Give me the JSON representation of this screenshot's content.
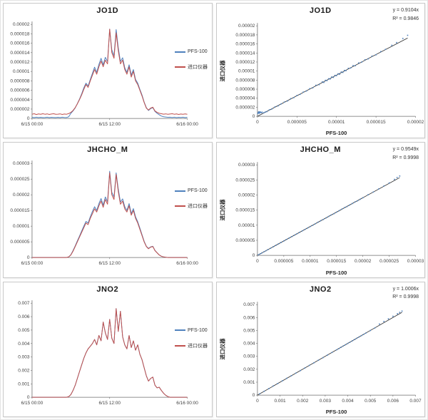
{
  "page": {
    "background": "#ffffff",
    "panel_border": "#c9c9c9"
  },
  "colors": {
    "pfs": "#4f81bd",
    "imported": "#c0504d",
    "trend": "#2b2b2b",
    "axis": "#6e6e6e",
    "tick_text": "#3f3f3f",
    "title_text": "#1a1a1a"
  },
  "chart_data": [
    {
      "id": "jo1d-timeseries",
      "type": "line",
      "title": "JO1D",
      "legend_position": "right",
      "x_axis": {
        "tick_labels": [
          "6/15 00:00",
          "6/15 12:00",
          "6/16 00:00"
        ],
        "start": "6/15 00:00",
        "end": "6/16 00:00",
        "sample_interval_minutes": 20
      },
      "y_axis": {
        "min": 0,
        "max": 2e-05,
        "tick_labels": [
          "0",
          "0.000002",
          "0.000004",
          "0.000006",
          "0.000008",
          "0.00001",
          "0.000012",
          "0.000014",
          "0.000016",
          "0.000018",
          "0.00002"
        ]
      },
      "series": [
        {
          "name": "PFS-100",
          "color_key": "pfs",
          "values": [
            2.4e-07,
            2e-07,
            2.6e-07,
            1.8e-07,
            2.4e-07,
            2e-07,
            2.2e-07,
            2.6e-07,
            2e-07,
            2.4e-07,
            2.2e-07,
            1.8e-07,
            2.4e-07,
            2e-07,
            2.6e-07,
            2.2e-07,
            2e-07,
            3.6e-07,
            1.1e-06,
            1.6e-06,
            2.24e-06,
            3.16e-06,
            4.1e-06,
            5.2e-06,
            6.5e-06,
            7.5e-06,
            6.9e-06,
            8.3e-06,
            9.6e-06,
            1.09e-05,
            9.8e-06,
            1.15e-05,
            1.28e-05,
            1.14e-05,
            1.3e-05,
            1.21e-05,
            1.9e-05,
            1.46e-05,
            1.33e-05,
            1.89e-05,
            1.5e-05,
            1.21e-05,
            1.29e-05,
            1.08e-05,
            9.8e-06,
            1.14e-05,
            9.2e-06,
            1.04e-05,
            8.3e-06,
            7.5e-06,
            6.2e-06,
            5e-06,
            3.5e-06,
            2.3e-06,
            1.7e-06,
            2.1e-06,
            2.3e-06,
            1.5e-06,
            1.1e-06,
            8e-07,
            5e-07,
            3.6e-07,
            3e-07,
            2.4e-07,
            2.8e-07,
            2.2e-07,
            2.6e-07,
            2e-07,
            2.4e-07,
            2.2e-07,
            2.6e-07,
            2e-07,
            2.4e-07
          ]
        },
        {
          "name": "进口仪器",
          "color_key": "imported",
          "values": [
            9e-07,
            1e-06,
            8.4e-07,
            9.6e-07,
            8.8e-07,
            1e-06,
            9e-07,
            9.8e-07,
            8.6e-07,
            9.4e-07,
            1e-06,
            8.8e-07,
            9.2e-07,
            9.8e-07,
            8.6e-07,
            9.4e-07,
            9e-07,
            1.04e-06,
            1.3e-06,
            1.7e-06,
            2.3e-06,
            3.1e-06,
            4e-06,
            5e-06,
            6.2e-06,
            7.2e-06,
            6.6e-06,
            8e-06,
            9.2e-06,
            1.04e-05,
            9.4e-06,
            1.1e-05,
            1.22e-05,
            1.1e-05,
            1.24e-05,
            1.16e-05,
            1.9e-05,
            1.4e-05,
            1.28e-05,
            1.82e-05,
            1.44e-05,
            1.16e-05,
            1.24e-05,
            1.04e-05,
            9.4e-06,
            1.1e-05,
            8.8e-06,
            1e-05,
            8e-06,
            7.2e-06,
            6e-06,
            4.8e-06,
            3.4e-06,
            2.2e-06,
            1.8e-06,
            2.2e-06,
            2.4e-06,
            1.6e-06,
            1.3e-06,
            1.1e-06,
            1e-06,
            9.2e-07,
            9.8e-07,
            8.8e-07,
            9.4e-07,
            1e-06,
            9e-07,
            9.6e-07,
            8.6e-07,
            9.4e-07,
            9e-07,
            9.6e-07,
            8.8e-07
          ]
        }
      ]
    },
    {
      "id": "jo1d-scatter",
      "type": "scatter",
      "title": "JO1D",
      "equation": "y = 0.9104x",
      "r_squared": "R² = 0.9846",
      "trend_slope": 0.9104,
      "x_label": "PFS-100",
      "y_label": "进口仪器",
      "x_axis": {
        "min": 0,
        "max": 2e-05,
        "tick_labels": [
          "0",
          "0.000005",
          "0.00001",
          "0.000015",
          "0.00002"
        ]
      },
      "y_axis": {
        "min": 0,
        "max": 2e-05,
        "tick_labels": [
          "0",
          "0.000002",
          "0.000004",
          "0.000006",
          "0.000008",
          "0.00001",
          "0.000012",
          "0.000014",
          "0.000016",
          "0.000018",
          "0.00002"
        ]
      },
      "points": {
        "x": [
          5e-08,
          1e-07,
          1.2e-07,
          1.8e-07,
          2e-07,
          2.5e-07,
          3e-07,
          3.5e-07,
          4e-07,
          5e-07,
          6e-07,
          8e-07,
          1e-06,
          1.2e-06,
          1.5e-06,
          1.8e-06,
          2.2e-06,
          2.6e-06,
          3e-06,
          3.4e-06,
          3.8e-06,
          4.2e-06,
          4.6e-06,
          5e-06,
          5.4e-06,
          5.8e-06,
          6.2e-06,
          6.6e-06,
          7e-06,
          7.4e-06,
          7.8e-06,
          8.2e-06,
          8.4e-06,
          8.6e-06,
          8.8e-06,
          9e-06,
          9.2e-06,
          9.4e-06,
          9.6e-06,
          9.8e-06,
          1e-05,
          1.02e-05,
          1.04e-05,
          1.06e-05,
          1.08e-05,
          1.1e-05,
          1.12e-05,
          1.15e-05,
          1.18e-05,
          1.21e-05,
          1.24e-05,
          1.28e-05,
          1.32e-05,
          1.36e-05,
          1.4e-05,
          1.45e-05,
          1.5e-05,
          1.56e-05,
          1.62e-05,
          1.7e-05,
          1.76e-05,
          1.84e-05,
          1.9e-05
        ],
        "y": [
          6e-07,
          7.5e-07,
          9e-07,
          8e-07,
          1e-06,
          7e-07,
          9e-07,
          8.5e-07,
          9.5e-07,
          8e-07,
          9e-07,
          7.8e-07,
          9.5e-07,
          1.05e-06,
          1.42e-06,
          1.6e-06,
          2.05e-06,
          2.3e-06,
          2.75e-06,
          3.15e-06,
          3.4e-06,
          3.9e-06,
          4.15e-06,
          4.6e-06,
          4.85e-06,
          5.35e-06,
          5.6e-06,
          6.1e-06,
          6.3e-06,
          6.85e-06,
          7e-06,
          7.6e-06,
          7.5e-06,
          7.95e-06,
          7.9e-06,
          8.3e-06,
          8.25e-06,
          8.7e-06,
          8.6e-06,
          9.05e-06,
          9e-06,
          9.4e-06,
          9.3e-06,
          9.8e-06,
          9.7e-06,
          1.015e-05,
          1.01e-05,
          1.06e-05,
          1.07e-05,
          1.12e-05,
          1.12e-05,
          1.18e-05,
          1.2e-05,
          1.25e-05,
          1.27e-05,
          1.33e-05,
          1.36e-05,
          1.43e-05,
          1.48e-05,
          1.57e-05,
          1.63e-05,
          1.72e-05,
          1.79e-05
        ]
      }
    },
    {
      "id": "jhcho-m-timeseries",
      "type": "line",
      "title": "JHCHO_M",
      "legend_position": "right",
      "x_axis": {
        "tick_labels": [
          "6/15 00:00",
          "6/15 12:00",
          "6/16 00:00"
        ],
        "start": "6/15 00:00",
        "end": "6/16 00:00",
        "sample_interval_minutes": 20
      },
      "y_axis": {
        "min": 0,
        "max": 3e-05,
        "tick_labels": [
          "0",
          "0.000005",
          "0.00001",
          "0.000015",
          "0.00002",
          "0.000025",
          "0.00003"
        ]
      },
      "series": [
        {
          "name": "PFS-100",
          "color_key": "pfs",
          "values": [
            0,
            0,
            0,
            0,
            0,
            0,
            0,
            0,
            0,
            0,
            0,
            0,
            0,
            0,
            0,
            0,
            0,
            2e-07,
            9e-07,
            2.2e-06,
            3.7e-06,
            5.3e-06,
            6.8e-06,
            8.4e-06,
            1e-05,
            1.15e-05,
            1.1e-05,
            1.3e-05,
            1.47e-05,
            1.62e-05,
            1.5e-05,
            1.72e-05,
            1.88e-05,
            1.67e-05,
            1.93e-05,
            1.78e-05,
            2.75e-05,
            2.08e-05,
            1.93e-05,
            2.7e-05,
            2.18e-05,
            1.77e-05,
            1.87e-05,
            1.62e-05,
            1.5e-05,
            1.72e-05,
            1.4e-05,
            1.56e-05,
            1.3e-05,
            1.14e-05,
            9.4e-06,
            7.3e-06,
            5.2e-06,
            3.6e-06,
            2.9e-06,
            3.4e-06,
            3.6e-06,
            2.3e-06,
            1.5e-06,
            8e-07,
            4e-07,
            2e-07,
            1e-07,
            0,
            0,
            0,
            0,
            0,
            0,
            0,
            0,
            0,
            0
          ]
        },
        {
          "name": "进口仪器",
          "color_key": "imported",
          "values": [
            0,
            0,
            0,
            0,
            0,
            0,
            0,
            0,
            0,
            0,
            0,
            0,
            0,
            0,
            0,
            0,
            0,
            2e-07,
            8e-07,
            2e-06,
            3.5e-06,
            5e-06,
            6.5e-06,
            8e-06,
            9.5e-06,
            1.1e-05,
            1.05e-05,
            1.25e-05,
            1.4e-05,
            1.55e-05,
            1.45e-05,
            1.65e-05,
            1.8e-05,
            1.6e-05,
            1.85e-05,
            1.7e-05,
            2.7e-05,
            2e-05,
            1.85e-05,
            2.65e-05,
            2.1e-05,
            1.7e-05,
            1.8e-05,
            1.55e-05,
            1.45e-05,
            1.65e-05,
            1.35e-05,
            1.5e-05,
            1.25e-05,
            1.1e-05,
            9e-06,
            7e-06,
            5e-06,
            3.5e-06,
            2.8e-06,
            3.3e-06,
            3.5e-06,
            2.2e-06,
            1.5e-06,
            8e-07,
            4e-07,
            2e-07,
            1e-07,
            0,
            0,
            0,
            0,
            0,
            0,
            0,
            0,
            0,
            0
          ]
        }
      ]
    },
    {
      "id": "jhcho-m-scatter",
      "type": "scatter",
      "title": "JHCHO_M",
      "equation": "y = 0.9549x",
      "r_squared": "R² = 0.9998",
      "trend_slope": 0.9549,
      "x_label": "PFS-100",
      "y_label": "进口仪器",
      "x_axis": {
        "min": 0,
        "max": 3e-05,
        "tick_labels": [
          "0",
          "0.000005",
          "0.00001",
          "0.000015",
          "0.00002",
          "0.000025",
          "0.00003"
        ]
      },
      "y_axis": {
        "min": 0,
        "max": 3e-05,
        "tick_labels": [
          "0",
          "0.000005",
          "0.00001",
          "0.000015",
          "0.00002",
          "0.000025",
          "0.00003"
        ]
      },
      "points": {
        "x": [
          2e-07,
          5e-07,
          8e-07,
          1.2e-06,
          1.6e-06,
          2e-06,
          2.5e-06,
          3e-06,
          3.5e-06,
          4e-06,
          4.5e-06,
          5e-06,
          5.5e-06,
          6e-06,
          6.5e-06,
          7e-06,
          7.5e-06,
          8e-06,
          8.5e-06,
          9e-06,
          9.5e-06,
          1e-05,
          1.05e-05,
          1.1e-05,
          1.15e-05,
          1.2e-05,
          1.25e-05,
          1.3e-05,
          1.35e-05,
          1.4e-05,
          1.45e-05,
          1.5e-05,
          1.55e-05,
          1.6e-05,
          1.65e-05,
          1.7e-05,
          1.75e-05,
          1.8e-05,
          1.85e-05,
          1.9e-05,
          1.95e-05,
          2e-05,
          2.1e-05,
          2.2e-05,
          2.3e-05,
          2.4e-05,
          2.5e-05,
          2.6e-05,
          2.65e-05,
          2.7e-05
        ],
        "y": [
          1.9e-07,
          4.8e-07,
          7.6e-07,
          1.15e-06,
          1.53e-06,
          1.91e-06,
          2.39e-06,
          2.86e-06,
          3.34e-06,
          3.82e-06,
          4.3e-06,
          4.77e-06,
          5.25e-06,
          5.73e-06,
          6.21e-06,
          6.68e-06,
          7.16e-06,
          7.64e-06,
          8.12e-06,
          8.59e-06,
          9.07e-06,
          9.55e-06,
          1e-05,
          1.05e-05,
          1.1e-05,
          1.15e-05,
          1.19e-05,
          1.24e-05,
          1.29e-05,
          1.34e-05,
          1.38e-05,
          1.43e-05,
          1.48e-05,
          1.53e-05,
          1.58e-05,
          1.62e-05,
          1.67e-05,
          1.72e-05,
          1.77e-05,
          1.81e-05,
          1.86e-05,
          1.91e-05,
          2.01e-05,
          2.1e-05,
          2.2e-05,
          2.3e-05,
          2.4e-05,
          2.52e-05,
          2.58e-05,
          2.63e-05
        ]
      }
    },
    {
      "id": "jno2-timeseries",
      "type": "line",
      "title": "JNO2",
      "legend_position": "right",
      "x_axis": {
        "tick_labels": [
          "6/15 00:00",
          "6/15 12:00",
          "6/16 00:00"
        ],
        "start": "6/15 00:00",
        "end": "6/16 00:00",
        "sample_interval_minutes": 20
      },
      "y_axis": {
        "min": 0,
        "max": 0.007,
        "tick_labels": [
          "0",
          "0.001",
          "0.002",
          "0.003",
          "0.004",
          "0.005",
          "0.006",
          "0.007"
        ]
      },
      "series": [
        {
          "name": "PFS-100",
          "color_key": "pfs",
          "values": [
            0,
            0,
            0,
            0,
            0,
            0,
            0,
            0,
            0,
            0,
            0,
            0,
            0,
            0,
            0,
            0,
            0,
            5e-05,
            0.0002,
            0.0005,
            0.0009,
            0.0014,
            0.0019,
            0.0024,
            0.0029,
            0.0033,
            0.0036,
            0.0038,
            0.004,
            0.0043,
            0.0039,
            0.0046,
            0.0042,
            0.0056,
            0.0048,
            0.0043,
            0.0058,
            0.0044,
            0.004,
            0.0066,
            0.0049,
            0.0064,
            0.0045,
            0.0039,
            0.0036,
            0.0046,
            0.0037,
            0.0042,
            0.0035,
            0.0039,
            0.0032,
            0.0028,
            0.0022,
            0.0016,
            0.0012,
            0.0014,
            0.0015,
            0.0009,
            0.0007,
            0.00075,
            0.0005,
            0.0003,
            0.00015,
            5e-05,
            0,
            0,
            0,
            0,
            0,
            0,
            0,
            0,
            0
          ]
        },
        {
          "name": "进口仪器",
          "color_key": "imported",
          "values": [
            0,
            0,
            0,
            0,
            0,
            0,
            0,
            0,
            0,
            0,
            0,
            0,
            0,
            0,
            0,
            0,
            0,
            5e-05,
            0.0002,
            0.0005,
            0.0009,
            0.0014,
            0.0019,
            0.0024,
            0.0029,
            0.0033,
            0.0036,
            0.0038,
            0.004,
            0.0043,
            0.0039,
            0.0046,
            0.0042,
            0.0056,
            0.0048,
            0.0043,
            0.0058,
            0.0044,
            0.004,
            0.0066,
            0.0049,
            0.0064,
            0.0045,
            0.0039,
            0.0036,
            0.0046,
            0.0037,
            0.0042,
            0.0035,
            0.0039,
            0.0032,
            0.0028,
            0.0022,
            0.0016,
            0.0012,
            0.0014,
            0.0015,
            0.0009,
            0.0007,
            0.00075,
            0.0005,
            0.0003,
            0.00015,
            5e-05,
            0,
            0,
            0,
            0,
            0,
            0,
            0,
            0,
            0
          ]
        }
      ]
    },
    {
      "id": "jno2-scatter",
      "type": "scatter",
      "title": "JNO2",
      "equation": "y = 1.0006x",
      "r_squared": "R² = 0.9998",
      "trend_slope": 1.0006,
      "x_label": "PFS-100",
      "y_label": "进口仪器",
      "x_axis": {
        "min": 0,
        "max": 0.007,
        "tick_labels": [
          "0",
          "0.001",
          "0.002",
          "0.003",
          "0.004",
          "0.005",
          "0.006",
          "0.007"
        ]
      },
      "y_axis": {
        "min": 0,
        "max": 0.007,
        "tick_labels": [
          "0",
          "0.001",
          "0.002",
          "0.003",
          "0.004",
          "0.005",
          "0.006",
          "0.007"
        ]
      },
      "points": {
        "x": [
          0.0001,
          0.0003,
          0.0005,
          0.0007,
          0.0009,
          0.0011,
          0.0013,
          0.0015,
          0.0017,
          0.0019,
          0.0021,
          0.0023,
          0.0025,
          0.0027,
          0.0029,
          0.0031,
          0.0033,
          0.0035,
          0.0036,
          0.0037,
          0.0038,
          0.0039,
          0.004,
          0.0041,
          0.0042,
          0.0043,
          0.0044,
          0.0045,
          0.0046,
          0.0047,
          0.0048,
          0.005,
          0.0052,
          0.0054,
          0.0056,
          0.0058,
          0.006,
          0.0062,
          0.0063,
          0.0064
        ],
        "y": [
          0.0001,
          0.0003,
          0.0005,
          0.00071,
          0.0009,
          0.0011,
          0.0013,
          0.0015,
          0.0017,
          0.0019,
          0.0021,
          0.0023,
          0.0025,
          0.0027,
          0.0029,
          0.0031,
          0.0033,
          0.0035,
          0.0036,
          0.0037,
          0.0038,
          0.0039,
          0.004,
          0.0041,
          0.0042,
          0.0043,
          0.0044,
          0.0045,
          0.0046,
          0.0047,
          0.0048,
          0.005,
          0.0052,
          0.0055,
          0.0057,
          0.0059,
          0.0061,
          0.0063,
          0.0064,
          0.0065
        ]
      }
    }
  ]
}
